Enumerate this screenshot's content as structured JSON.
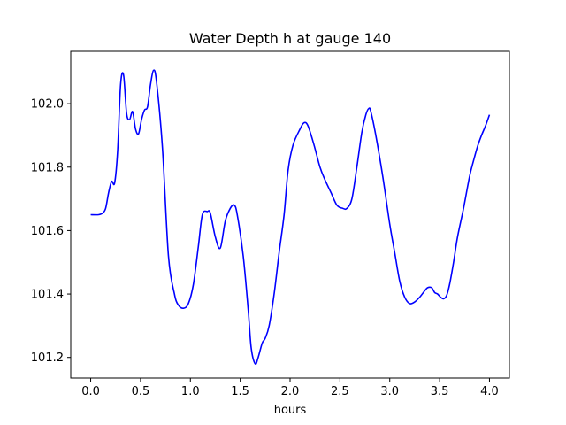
{
  "chart_data": {
    "type": "line",
    "title": "Water Depth h at gauge 140",
    "xlabel": "hours",
    "ylabel": "",
    "xlim": [
      -0.2,
      4.2
    ],
    "ylim": [
      101.135,
      102.165
    ],
    "xticks": [
      0.0,
      0.5,
      1.0,
      1.5,
      2.0,
      2.5,
      3.0,
      3.5,
      4.0
    ],
    "xtick_labels": [
      "0.0",
      "0.5",
      "1.0",
      "1.5",
      "2.0",
      "2.5",
      "3.0",
      "3.5",
      "4.0"
    ],
    "yticks": [
      101.2,
      101.4,
      101.6,
      101.8,
      102.0
    ],
    "ytick_labels": [
      "101.2",
      "101.4",
      "101.6",
      "101.8",
      "102.0"
    ],
    "grid": false,
    "series": [
      {
        "color": "#0000ff",
        "x": [
          0.0,
          0.08,
          0.12,
          0.15,
          0.18,
          0.21,
          0.24,
          0.27,
          0.3,
          0.33,
          0.36,
          0.39,
          0.42,
          0.45,
          0.48,
          0.51,
          0.54,
          0.57,
          0.6,
          0.63,
          0.66,
          0.72,
          0.78,
          0.84,
          0.88,
          0.93,
          0.98,
          1.03,
          1.08,
          1.12,
          1.17,
          1.2,
          1.25,
          1.3,
          1.35,
          1.4,
          1.44,
          1.47,
          1.53,
          1.58,
          1.61,
          1.65,
          1.68,
          1.72,
          1.75,
          1.79,
          1.84,
          1.89,
          1.94,
          1.98,
          2.03,
          2.1,
          2.14,
          2.18,
          2.24,
          2.3,
          2.35,
          2.41,
          2.47,
          2.53,
          2.57,
          2.62,
          2.67,
          2.72,
          2.76,
          2.79,
          2.81,
          2.86,
          2.93,
          3.0,
          3.05,
          3.1,
          3.15,
          3.2,
          3.25,
          3.3,
          3.35,
          3.38,
          3.42,
          3.45,
          3.48,
          3.51,
          3.54,
          3.57,
          3.6,
          3.64,
          3.68,
          3.74,
          3.8,
          3.84,
          3.88,
          3.92,
          3.96,
          4.0
        ],
        "y": [
          101.65,
          101.65,
          101.655,
          101.67,
          101.72,
          101.755,
          101.75,
          101.85,
          102.06,
          102.09,
          101.97,
          101.95,
          101.975,
          101.92,
          101.905,
          101.95,
          101.98,
          101.99,
          102.06,
          102.105,
          102.07,
          101.86,
          101.52,
          101.4,
          101.365,
          101.355,
          101.37,
          101.43,
          101.55,
          101.65,
          101.66,
          101.655,
          101.58,
          101.545,
          101.63,
          101.67,
          101.68,
          101.65,
          101.52,
          101.35,
          101.23,
          101.18,
          101.2,
          101.245,
          101.26,
          101.3,
          101.4,
          101.53,
          101.65,
          101.79,
          101.87,
          101.92,
          101.94,
          101.93,
          101.87,
          101.8,
          101.76,
          101.72,
          101.68,
          101.67,
          101.67,
          101.7,
          101.8,
          101.91,
          101.965,
          101.985,
          101.975,
          101.9,
          101.77,
          101.62,
          101.53,
          101.44,
          101.39,
          101.37,
          101.375,
          101.39,
          101.41,
          101.42,
          101.42,
          101.405,
          101.4,
          101.39,
          101.385,
          101.395,
          101.43,
          101.5,
          101.58,
          101.67,
          101.77,
          101.82,
          101.865,
          101.9,
          101.93,
          101.965
        ]
      }
    ]
  }
}
